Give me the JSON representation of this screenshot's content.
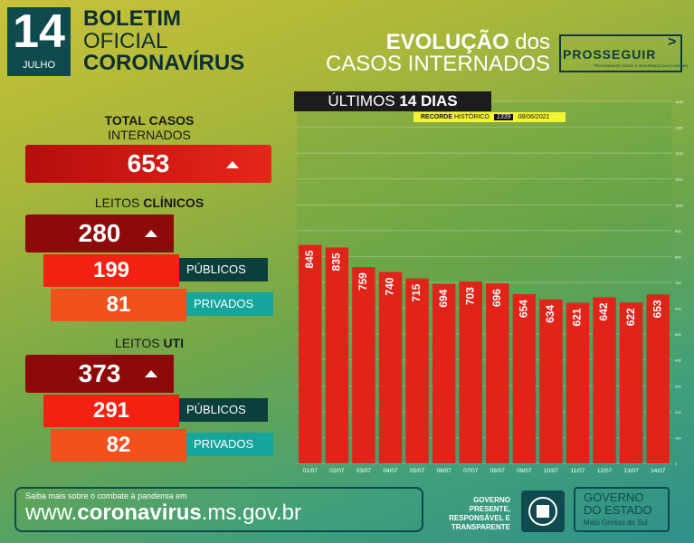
{
  "header": {
    "day": "14",
    "month": "JULHO",
    "line1": "BOLETIM",
    "line2": "OFICIAL",
    "line3": "CORONAVÍRUS",
    "evo_a": "EVOLUÇÃO",
    "evo_b": "dos",
    "evo_line2": "CASOS INTERNADOS",
    "logo": "PROSSEGUIR",
    "logo_sub": "PROGRAMA DE SAÚDE E SEGURANÇA DA ECONOMIA"
  },
  "totals": {
    "total_label_1": "TOTAL CASOS",
    "total_label_2": "INTERNADOS",
    "total_value": "653",
    "clinicos_label_a": "LEITOS",
    "clinicos_label_b": "CLÍNICOS",
    "clinicos_value": "280",
    "clinicos_publicos": "199",
    "clinicos_privados": "81",
    "uti_label_a": "LEITOS",
    "uti_label_b": "UTI",
    "uti_value": "373",
    "uti_publicos": "291",
    "uti_privados": "82",
    "publicos_label": "PÚBLICOS",
    "privados_label": "PRIVADOS"
  },
  "chart_header": {
    "ultimos_a": "ÚLTIMOS",
    "ultimos_b": "14 DIAS",
    "recorde_a": "RECORDE",
    "recorde_b": "HISTÓRICO",
    "recorde_value": "1339",
    "recorde_date": "08/06/2021"
  },
  "chart_data": {
    "type": "bar",
    "title": "",
    "categories": [
      "01/07",
      "02/07",
      "03/07",
      "04/07",
      "05/07",
      "06/07",
      "07/07",
      "08/07",
      "09/07",
      "10/07",
      "11/07",
      "12/07",
      "13/07",
      "14/07"
    ],
    "values": [
      845,
      835,
      759,
      740,
      715,
      694,
      703,
      696,
      654,
      634,
      621,
      642,
      622,
      653
    ],
    "ylim": [
      0,
      1400
    ],
    "yticks": [
      0,
      100,
      200,
      300,
      400,
      500,
      600,
      700,
      800,
      900,
      1000,
      1100,
      1200,
      1300,
      1400
    ],
    "grid": true,
    "bar_color": "#e0241a"
  },
  "footer": {
    "saiba": "Saiba mais sobre o combate à pandemia em",
    "url_a": "www.",
    "url_b": "coronavirus",
    "url_c": ".ms.gov.br",
    "gov_line1": "GOVERNO",
    "gov_line2": "PRESENTE,",
    "gov_line3": "RESPONSÁVEL E",
    "gov_line4": "TRANSPARENTE",
    "govbox_1": "GOVERNO",
    "govbox_2": "DO ESTADO",
    "govbox_3": "Mato Grosso do Sul"
  }
}
